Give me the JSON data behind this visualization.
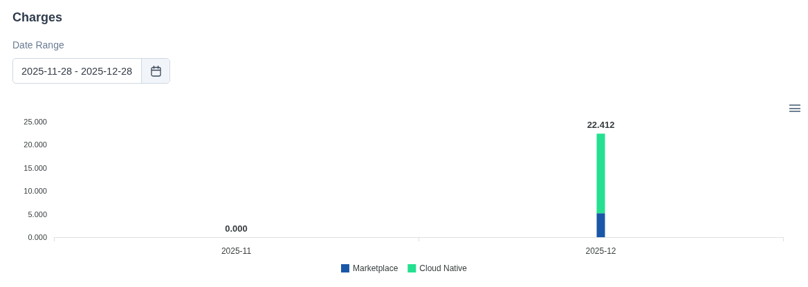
{
  "chart_data": {
    "type": "bar",
    "title": "Charges",
    "annotations": [
      "Date Range",
      "2025-11-28 - 2025-12-28"
    ],
    "categories": [
      "2025-11",
      "2025-12"
    ],
    "series": [
      {
        "name": "Marketplace",
        "color": "#1b57a8",
        "values": [
          0,
          5.2
        ]
      },
      {
        "name": "Cloud Native",
        "color": "#24e090",
        "values": [
          0,
          17.212
        ]
      }
    ],
    "stacked": true,
    "totals": [
      "0.000",
      "22.412"
    ],
    "ylim": [
      0,
      25
    ],
    "yticks": [
      {
        "value": 0,
        "label": "0.000"
      },
      {
        "value": 5,
        "label": "5.000"
      },
      {
        "value": 10,
        "label": "10.000"
      },
      {
        "value": 15,
        "label": "15.000"
      },
      {
        "value": 20,
        "label": "20.000"
      },
      {
        "value": 25,
        "label": "25.000"
      }
    ],
    "grid": false,
    "legend": "bottom"
  }
}
